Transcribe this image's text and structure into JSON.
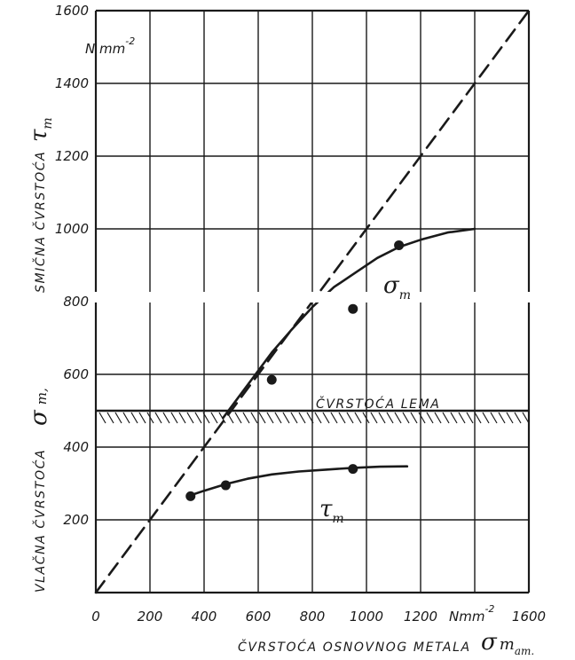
{
  "chart_data": {
    "type": "scatter",
    "xlim": [
      0,
      1600
    ],
    "ylim": [
      0,
      1600
    ],
    "grid": true,
    "x_ticks": [
      "0",
      "200",
      "400",
      "600",
      "800",
      "1000",
      "1200",
      "1600"
    ],
    "x_unit": "Nmm",
    "x_unit_exp": "-2",
    "x_label": "ČVRSTOĆA OSNOVNOG METALA",
    "x_symbol": "σ",
    "x_symbol_sub": "m",
    "x_symbol_sub2": "am.",
    "y_ticks": [
      "200",
      "400",
      "600",
      "800",
      "1000",
      "1200",
      "1400",
      "1600"
    ],
    "y_unit": "N mm",
    "y_unit_exp": "-2",
    "y_label_top": "SMIČNA ČVRSTOĆA",
    "y_symbol_top": "τ",
    "y_symbol_top_sub": "m",
    "y_label_bottom": "VLAČNA ČVRSTOĆA",
    "y_symbol_bottom": "σ",
    "y_symbol_bottom_sub": "m,",
    "solder_strength": {
      "label": "ČVRSTOĆA LEMA",
      "value": 500
    },
    "series": [
      {
        "name": "σm",
        "symbol": "σ",
        "symbol_sub": "m",
        "points": [
          [
            650,
            585
          ],
          [
            950,
            780
          ],
          [
            1120,
            955
          ]
        ],
        "curve": [
          [
            470,
            480
          ],
          [
            520,
            530
          ],
          [
            580,
            590
          ],
          [
            650,
            660
          ],
          [
            720,
            720
          ],
          [
            800,
            785
          ],
          [
            880,
            840
          ],
          [
            960,
            880
          ],
          [
            1040,
            920
          ],
          [
            1120,
            950
          ],
          [
            1200,
            970
          ],
          [
            1300,
            990
          ],
          [
            1400,
            1000
          ]
        ]
      },
      {
        "name": "τm",
        "symbol": "τ",
        "symbol_sub": "m",
        "points": [
          [
            350,
            265
          ],
          [
            480,
            295
          ],
          [
            950,
            340
          ]
        ],
        "curve": [
          [
            340,
            265
          ],
          [
            400,
            280
          ],
          [
            480,
            298
          ],
          [
            560,
            313
          ],
          [
            650,
            325
          ],
          [
            750,
            333
          ],
          [
            850,
            338
          ],
          [
            950,
            343
          ],
          [
            1050,
            346
          ],
          [
            1150,
            347
          ]
        ]
      },
      {
        "name": "",
        "style": "dashed",
        "curve": [
          [
            0,
            0
          ],
          [
            1600,
            1600
          ]
        ]
      }
    ]
  }
}
